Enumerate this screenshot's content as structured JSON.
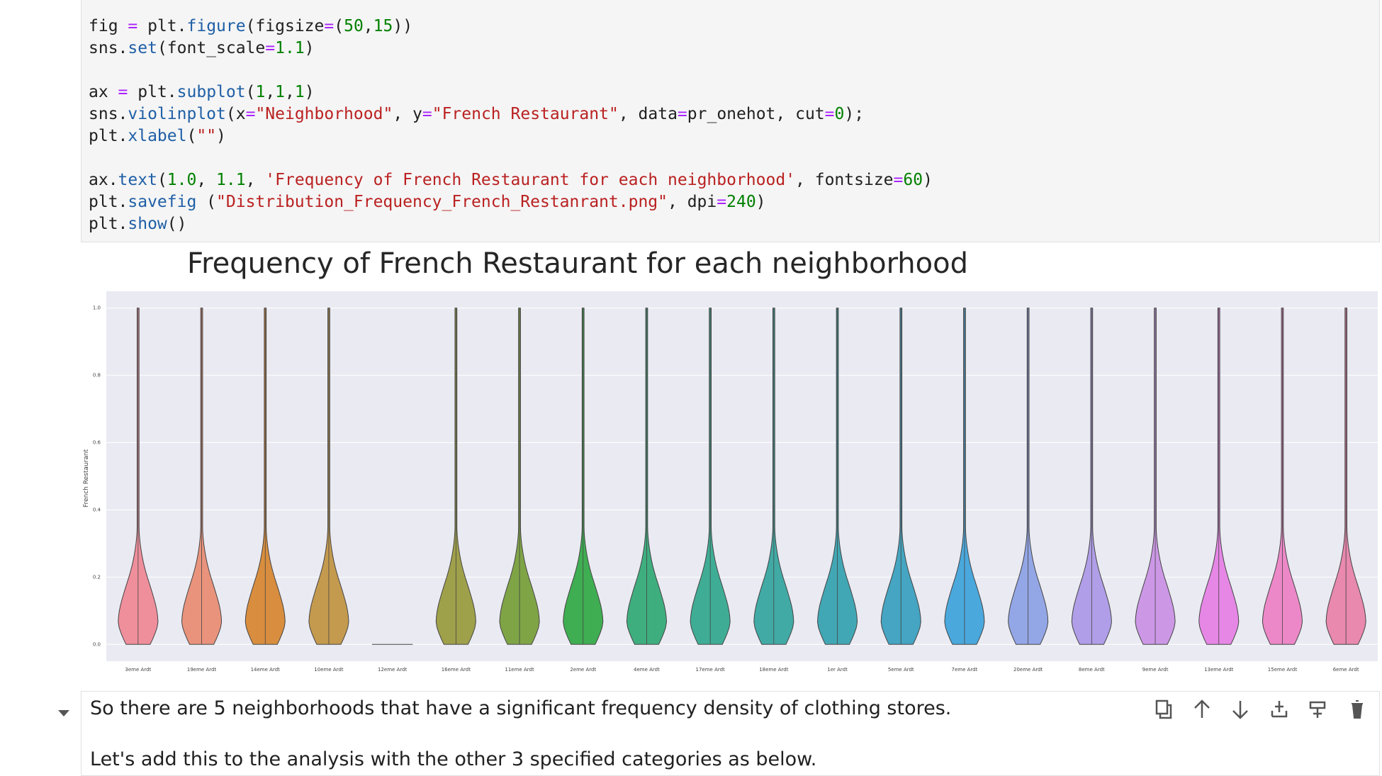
{
  "code": {
    "lines": [
      [
        [
          "fig ",
          "plain"
        ],
        [
          "=",
          "op"
        ],
        [
          " plt.",
          "plain"
        ],
        [
          "figure",
          "fn"
        ],
        [
          "(figsize",
          "plain"
        ],
        [
          "=",
          "op"
        ],
        [
          "(",
          "plain"
        ],
        [
          "50",
          "num"
        ],
        [
          ",",
          "plain"
        ],
        [
          "15",
          "num"
        ],
        [
          "))",
          "plain"
        ]
      ],
      [
        [
          "sns.",
          "plain"
        ],
        [
          "set",
          "fn"
        ],
        [
          "(font_scale",
          "plain"
        ],
        [
          "=",
          "op"
        ],
        [
          "1.1",
          "num"
        ],
        [
          ")",
          "plain"
        ]
      ],
      [],
      [
        [
          "ax ",
          "plain"
        ],
        [
          "=",
          "op"
        ],
        [
          " plt.",
          "plain"
        ],
        [
          "subplot",
          "fn"
        ],
        [
          "(",
          "plain"
        ],
        [
          "1",
          "num"
        ],
        [
          ",",
          "plain"
        ],
        [
          "1",
          "num"
        ],
        [
          ",",
          "plain"
        ],
        [
          "1",
          "num"
        ],
        [
          ")",
          "plain"
        ]
      ],
      [
        [
          "sns.",
          "plain"
        ],
        [
          "violinplot",
          "fn"
        ],
        [
          "(x",
          "plain"
        ],
        [
          "=",
          "op"
        ],
        [
          "\"Neighborhood\"",
          "str"
        ],
        [
          ", y",
          "plain"
        ],
        [
          "=",
          "op"
        ],
        [
          "\"French Restaurant\"",
          "str"
        ],
        [
          ", data",
          "plain"
        ],
        [
          "=",
          "op"
        ],
        [
          "pr_onehot, cut",
          "plain"
        ],
        [
          "=",
          "op"
        ],
        [
          "0",
          "num"
        ],
        [
          ");",
          "plain"
        ]
      ],
      [
        [
          "plt.",
          "plain"
        ],
        [
          "xlabel",
          "fn"
        ],
        [
          "(",
          "plain"
        ],
        [
          "\"\"",
          "str"
        ],
        [
          ")",
          "plain"
        ]
      ],
      [],
      [
        [
          "ax.",
          "plain"
        ],
        [
          "text",
          "fn"
        ],
        [
          "(",
          "plain"
        ],
        [
          "1.0",
          "num"
        ],
        [
          ", ",
          "plain"
        ],
        [
          "1.1",
          "num"
        ],
        [
          ", ",
          "plain"
        ],
        [
          "'Frequency of French Restaurant for each neighborhood'",
          "str"
        ],
        [
          ", fontsize",
          "plain"
        ],
        [
          "=",
          "op"
        ],
        [
          "60",
          "num"
        ],
        [
          ")",
          "plain"
        ]
      ],
      [
        [
          "plt.",
          "plain"
        ],
        [
          "savefig",
          "fn"
        ],
        [
          " (",
          "plain"
        ],
        [
          "\"Distribution_Frequency_French_Restanrant.png\"",
          "str"
        ],
        [
          ", dpi",
          "plain"
        ],
        [
          "=",
          "op"
        ],
        [
          "240",
          "num"
        ],
        [
          ")",
          "plain"
        ]
      ],
      [
        [
          "plt.",
          "plain"
        ],
        [
          "show",
          "fn"
        ],
        [
          "()",
          "plain"
        ]
      ]
    ]
  },
  "chart_data": {
    "type": "violin",
    "title": "Frequency of French Restaurant for each neighborhood",
    "y_label": "French Restaurant",
    "categories": [
      "3eme Ardt",
      "19eme Ardt",
      "14eme Ardt",
      "10eme Ardt",
      "12eme Ardt",
      "16eme Ardt",
      "11eme Ardt",
      "2eme Ardt",
      "4eme Ardt",
      "17eme Ardt",
      "18eme Ardt",
      "1er Ardt",
      "5eme Ardt",
      "7eme Ardt",
      "20eme Ardt",
      "8eme Ardt",
      "9eme Ardt",
      "13eme Ardt",
      "15eme Ardt",
      "6eme Ardt"
    ],
    "values": [
      1.0,
      1.0,
      1.0,
      1.0,
      0.0,
      1.0,
      1.0,
      1.0,
      1.0,
      1.0,
      1.0,
      1.0,
      1.0,
      1.0,
      1.0,
      1.0,
      1.0,
      1.0,
      1.0,
      1.0
    ],
    "colors": [
      "#ef8f9c",
      "#e9937c",
      "#d88e3e",
      "#c49a4e",
      "#b3a04a",
      "#9fa04a",
      "#7fa446",
      "#3fae52",
      "#3fae7f",
      "#3fad95",
      "#41aaa5",
      "#42a7b4",
      "#45a5c2",
      "#4aa8dc",
      "#93a6e6",
      "#b09ee8",
      "#cc98e6",
      "#e687e6",
      "#ec88c8",
      "#e889ad"
    ],
    "ylim": [
      -0.05,
      1.05
    ],
    "yticks": [
      {
        "value": 0,
        "label": "0.0"
      },
      0.2,
      0.4,
      0.6,
      0.8,
      {
        "value": 1,
        "label": "1.0"
      }
    ],
    "grid": true
  },
  "markdown": {
    "paragraphs": [
      "So there are 5 neighborhoods that have a significant frequency density of clothing stores.",
      "Let's add this to the analysis with the other 3 specified categories as below."
    ]
  }
}
